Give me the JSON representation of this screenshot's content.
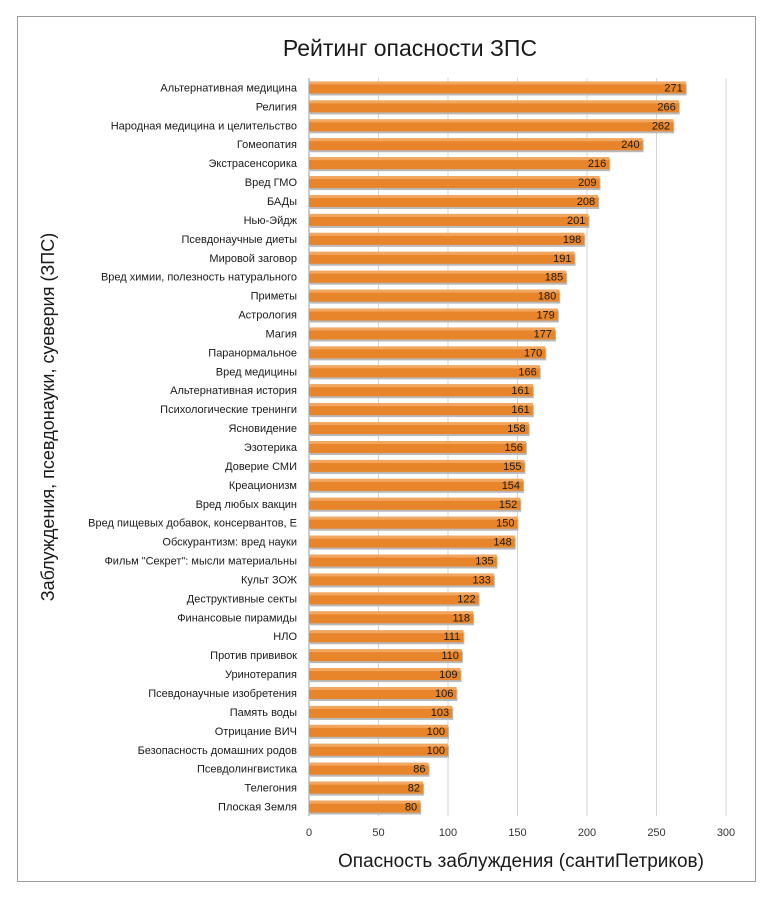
{
  "chart_data": {
    "type": "bar",
    "orientation": "horizontal",
    "title": "Рейтинг опасности ЗПС",
    "xlabel": "Опасность заблуждения (сантиПетриков)",
    "ylabel": "Заблуждения, псевдонауки, суеверия (ЗПС)",
    "xlim": [
      0,
      300
    ],
    "ticks": [
      "0",
      "50",
      "100",
      "150",
      "200",
      "250",
      "300"
    ],
    "grid": true,
    "legend": "none",
    "bar_color": "#e8852a",
    "categories": [
      "Альтернативная медицина",
      "Религия",
      "Народная медицина и целительство",
      "Гомеопатия",
      "Экстрасенсорика",
      "Вред ГМО",
      "БАДы",
      "Нью-Эйдж",
      "Псевдонаучные диеты",
      "Мировой заговор",
      "Вред химии, полезность натурального",
      "Приметы",
      "Астрология",
      "Магия",
      "Паранормальное",
      "Вред медицины",
      "Альтернативная история",
      "Психологические тренинги",
      "Ясновидение",
      "Эзотерика",
      "Доверие СМИ",
      "Креационизм",
      "Вред любых вакцин",
      "Вред пищевых добавок, консервантов, Е",
      "Обскурантизм: вред науки",
      "Фильм \"Секрет\": мысли материальны",
      "Культ ЗОЖ",
      "Деструктивные секты",
      "Финансовые пирамиды",
      "НЛО",
      "Против прививок",
      "Уринотерапия",
      "Псевдонаучные изобретения",
      "Память воды",
      "Отрицание ВИЧ",
      "Безопасность домашних родов",
      "Псевдолингвистика",
      "Телегония",
      "Плоская Земля"
    ],
    "values": [
      271,
      266,
      262,
      240,
      216,
      209,
      208,
      201,
      198,
      191,
      185,
      180,
      179,
      177,
      170,
      166,
      161,
      161,
      158,
      156,
      155,
      154,
      152,
      150,
      148,
      135,
      133,
      122,
      118,
      111,
      110,
      109,
      106,
      103,
      100,
      100,
      86,
      82,
      80
    ]
  }
}
